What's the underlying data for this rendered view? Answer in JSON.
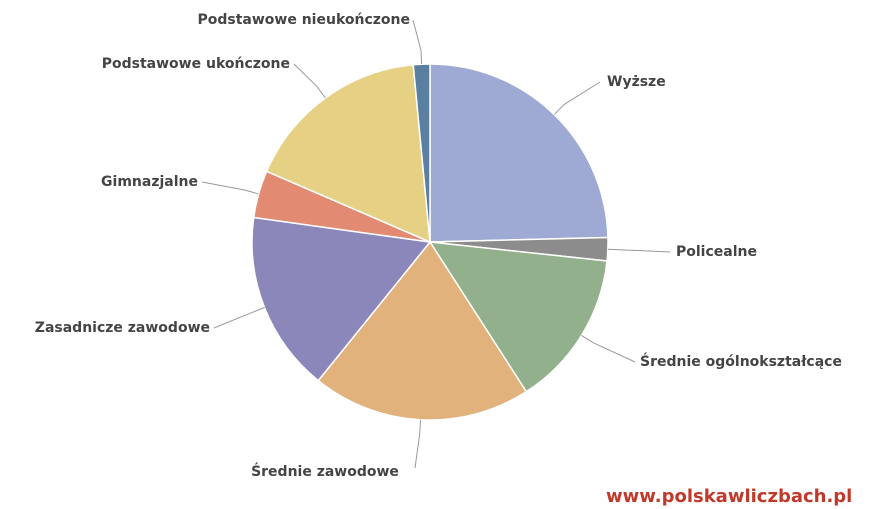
{
  "chart_data": {
    "type": "pie",
    "categories": [
      "Wyższe",
      "Policealne",
      "Średnie ogólnokształcące",
      "Średnie zawodowe",
      "Zasadnicze zawodowe",
      "Gimnazjalne",
      "Podstawowe ukończone",
      "Podstawowe nieukończone"
    ],
    "values": [
      24.6,
      2.1,
      14.2,
      19.9,
      16.4,
      4.3,
      17,
      1.5
    ],
    "colors": [
      "#9eaad3",
      "#8c8c8c",
      "#93b08d",
      "#e2b27c",
      "#8b87ba",
      "#e38b72",
      "#e6d083",
      "#5b7fa1"
    ],
    "source": "www.polskawliczbach.pl"
  }
}
